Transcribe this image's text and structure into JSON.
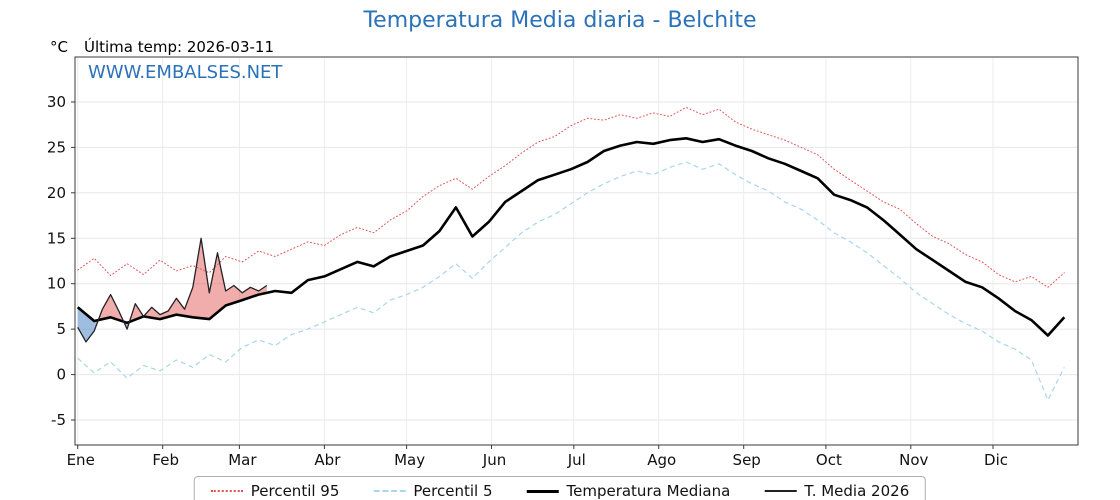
{
  "header": {
    "y_axis_unit": "°C",
    "last_temp_label": "Última temp: 2026-03-11"
  },
  "watermark": {
    "text": "WWW.EMBALSES.NET"
  },
  "accent_color": "#2b72b8",
  "chart_data": {
    "type": "line",
    "title": "Temperatura Media diaria - Belchite",
    "x_axis": {
      "range": [
        0,
        366
      ],
      "tick_days": [
        1,
        32,
        60,
        91,
        121,
        152,
        182,
        213,
        244,
        274,
        305,
        335
      ],
      "tick_labels": [
        "Ene",
        "Feb",
        "Mar",
        "Abr",
        "May",
        "Jun",
        "Jul",
        "Ago",
        "Sep",
        "Oct",
        "Nov",
        "Dic"
      ]
    },
    "y_axis": {
      "range": [
        -7.75,
        34.95
      ],
      "ticks": [
        -5,
        0,
        5,
        10,
        15,
        20,
        25,
        30
      ]
    },
    "grid": true,
    "legend_position": "bottom",
    "fill_above_color": "rgba(225,70,70,0.45)",
    "fill_below_color": "rgba(95,145,205,0.6)",
    "x_days_climatology": [
      1,
      7,
      13,
      19,
      25,
      31,
      37,
      43,
      49,
      55,
      61,
      67,
      73,
      79,
      85,
      91,
      97,
      103,
      109,
      115,
      121,
      127,
      133,
      139,
      145,
      151,
      157,
      163,
      169,
      175,
      181,
      187,
      193,
      199,
      205,
      211,
      217,
      223,
      229,
      235,
      241,
      247,
      253,
      259,
      265,
      271,
      277,
      283,
      289,
      295,
      301,
      307,
      313,
      319,
      325,
      331,
      337,
      343,
      349,
      355,
      361
    ],
    "series": [
      {
        "name": "Percentil 95",
        "color": "#e05252",
        "line": "dotted",
        "width": 1,
        "x_key": "x_days_climatology",
        "values": [
          11.5,
          12.8,
          10.9,
          12.2,
          11.0,
          12.6,
          11.4,
          12.0,
          11.2,
          13.0,
          12.4,
          13.6,
          13.0,
          13.8,
          14.6,
          14.2,
          15.4,
          16.2,
          15.6,
          17.0,
          18.0,
          19.6,
          20.8,
          21.6,
          20.4,
          21.8,
          23.0,
          24.4,
          25.6,
          26.2,
          27.4,
          28.2,
          28.0,
          28.6,
          28.2,
          28.8,
          28.4,
          29.4,
          28.6,
          29.2,
          27.8,
          27.0,
          26.4,
          25.8,
          25.0,
          24.2,
          22.6,
          21.4,
          20.2,
          19.0,
          18.2,
          16.6,
          15.2,
          14.4,
          13.2,
          12.4,
          11.0,
          10.2,
          10.8,
          9.6,
          11.2
        ]
      },
      {
        "name": "Percentil 5",
        "color": "#a9d6e8",
        "line": "dashed",
        "width": 1.2,
        "x_key": "x_days_climatology",
        "values": [
          1.8,
          0.2,
          1.4,
          -0.4,
          1.0,
          0.4,
          1.6,
          0.8,
          2.2,
          1.4,
          3.0,
          3.8,
          3.2,
          4.4,
          5.0,
          5.8,
          6.6,
          7.4,
          6.8,
          8.2,
          8.8,
          9.6,
          10.8,
          12.2,
          10.6,
          12.4,
          14.0,
          15.6,
          16.8,
          17.6,
          18.8,
          20.0,
          21.0,
          21.8,
          22.4,
          22.0,
          22.8,
          23.4,
          22.6,
          23.2,
          22.0,
          21.0,
          20.2,
          19.0,
          18.2,
          17.0,
          15.6,
          14.6,
          13.4,
          12.0,
          10.6,
          9.0,
          7.8,
          6.6,
          5.6,
          4.8,
          3.6,
          2.8,
          1.6,
          -2.8,
          0.8
        ]
      },
      {
        "name": "Temperatura Mediana",
        "color": "#000000",
        "line": "solid",
        "width": 2.6,
        "x_key": "x_days_climatology",
        "values": [
          7.4,
          5.9,
          6.3,
          5.7,
          6.4,
          6.1,
          6.6,
          6.3,
          6.1,
          7.6,
          8.2,
          8.8,
          9.2,
          9.0,
          10.4,
          10.8,
          11.6,
          12.4,
          11.9,
          13.0,
          13.6,
          14.2,
          15.8,
          18.4,
          15.2,
          16.8,
          19.0,
          20.2,
          21.4,
          22.0,
          22.6,
          23.4,
          24.6,
          25.2,
          25.6,
          25.4,
          25.8,
          26.0,
          25.6,
          25.9,
          25.2,
          24.6,
          23.8,
          23.2,
          22.4,
          21.6,
          19.8,
          19.2,
          18.4,
          17.0,
          15.4,
          13.8,
          12.6,
          11.4,
          10.2,
          9.6,
          8.4,
          7.0,
          6.0,
          4.3,
          6.3
        ]
      },
      {
        "name": "T. Media 2026",
        "color": "#222222",
        "line": "solid",
        "width": 1.3,
        "x": [
          1,
          4,
          7,
          10,
          13,
          16,
          19,
          22,
          25,
          28,
          31,
          34,
          37,
          40,
          43,
          46,
          49,
          52,
          55,
          58,
          61,
          64,
          67,
          70
        ],
        "values": [
          5.2,
          3.6,
          4.8,
          7.2,
          8.8,
          7.0,
          5.0,
          7.8,
          6.4,
          7.4,
          6.6,
          7.0,
          8.4,
          7.2,
          9.6,
          15.0,
          9.0,
          13.4,
          9.2,
          9.8,
          9.0,
          9.6,
          9.2,
          9.8
        ]
      }
    ]
  }
}
